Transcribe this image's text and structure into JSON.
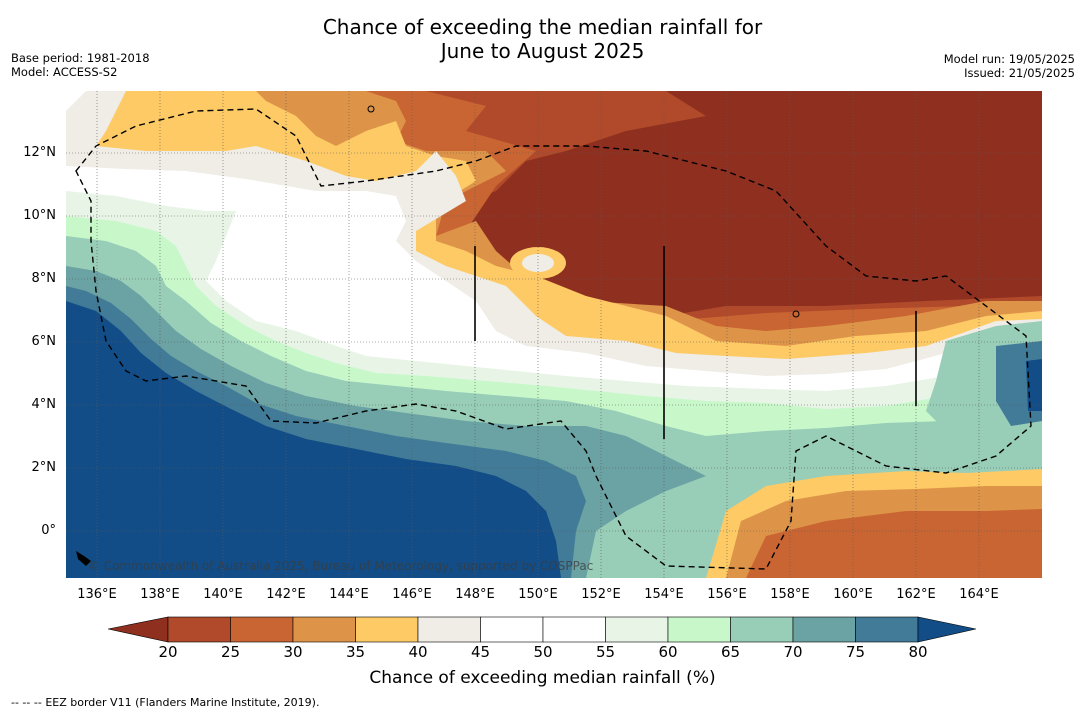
{
  "header": {
    "title_line1": "Chance of exceeding the median rainfall for",
    "title_line2": "June to August 2025",
    "base_period": "Base period: 1981-2018",
    "model": "Model: ACCESS-S2",
    "model_run": "Model run: 19/05/2025",
    "issued": "Issued: 21/05/2025"
  },
  "map": {
    "lat_labels": [
      "12°N",
      "10°N",
      "8°N",
      "6°N",
      "4°N",
      "2°N",
      "0°"
    ],
    "lon_labels": [
      "136°E",
      "138°E",
      "140°E",
      "142°E",
      "144°E",
      "146°E",
      "148°E",
      "150°E",
      "152°E",
      "154°E",
      "156°E",
      "158°E",
      "160°E",
      "162°E",
      "164°E"
    ],
    "copyright": "© Commonwealth of Australia 2025, Bureau of Meteorology, supported by COSPPac",
    "category_colors": {
      "lt20": "#8f2f1f",
      "c20": "#b04a2a",
      "c25": "#c96532",
      "c30": "#de9448",
      "c35": "#fdca66",
      "c40": "#f0ece6",
      "c45": "#ffffff",
      "c50": "#ffffff",
      "c55": "#e7f4e6",
      "c60": "#c8f8ca",
      "c65": "#98cdb8",
      "c70": "#6ba2a3",
      "c75": "#417b97",
      "c80": "#124d87"
    }
  },
  "colorbar": {
    "ticks": [
      "20",
      "25",
      "30",
      "35",
      "40",
      "45",
      "50",
      "55",
      "60",
      "65",
      "70",
      "75",
      "80"
    ],
    "colors": [
      "#b04a2a",
      "#c96532",
      "#de9448",
      "#fdca66",
      "#f0ece6",
      "#ffffff",
      "#ffffff",
      "#e7f4e6",
      "#c8f8ca",
      "#98cdb8",
      "#6ba2a3",
      "#417b97"
    ],
    "low_extend_color": "#8f2f1f",
    "high_extend_color": "#124d87",
    "label": "Chance of exceeding median rainfall (%)"
  },
  "footer": {
    "legend_symbol": "--  --  --",
    "legend_text": "EEZ border V11 (Flanders Marine Institute, 2019)."
  }
}
